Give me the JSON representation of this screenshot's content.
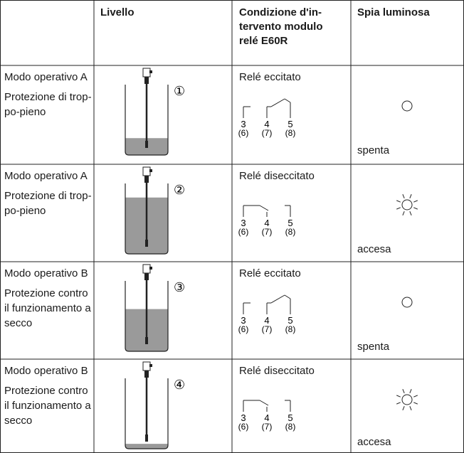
{
  "table": {
    "header": {
      "level": "Livello",
      "condition": [
        "Condizione d'in-",
        "tervento modulo",
        "relé E60R"
      ],
      "lamp": "Spia luminosa"
    },
    "rows": [
      {
        "mode": "Modo operativo A",
        "description": [
          "Protezione di trop-",
          "po-pieno"
        ],
        "marker": "①",
        "relay": "Relé eccitato",
        "terminals": [
          "3",
          "4",
          "5"
        ],
        "terminals_alt": [
          "(6)",
          "(7)",
          "(8)"
        ],
        "lamp": "spenta"
      },
      {
        "mode": "Modo operativo A",
        "description": [
          "Protezione di trop-",
          "po-pieno"
        ],
        "marker": "②",
        "relay": "Relé diseccitato",
        "terminals": [
          "3",
          "4",
          "5"
        ],
        "terminals_alt": [
          "(6)",
          "(7)",
          "(8)"
        ],
        "lamp": "accesa"
      },
      {
        "mode": "Modo operativo B",
        "description": [
          "Protezione contro",
          "il funzionamento a",
          "secco"
        ],
        "marker": "③",
        "relay": "Relé eccitato",
        "terminals": [
          "3",
          "4",
          "5"
        ],
        "terminals_alt": [
          "(6)",
          "(7)",
          "(8)"
        ],
        "lamp": "spenta"
      },
      {
        "mode": "Modo operativo B",
        "description": [
          "Protezione contro",
          "il funzionamento a",
          "secco"
        ],
        "marker": "④",
        "relay": "Relé diseccitato",
        "terminals": [
          "3",
          "4",
          "5"
        ],
        "terminals_alt": [
          "(6)",
          "(7)",
          "(8)"
        ],
        "lamp": "accesa"
      }
    ]
  }
}
